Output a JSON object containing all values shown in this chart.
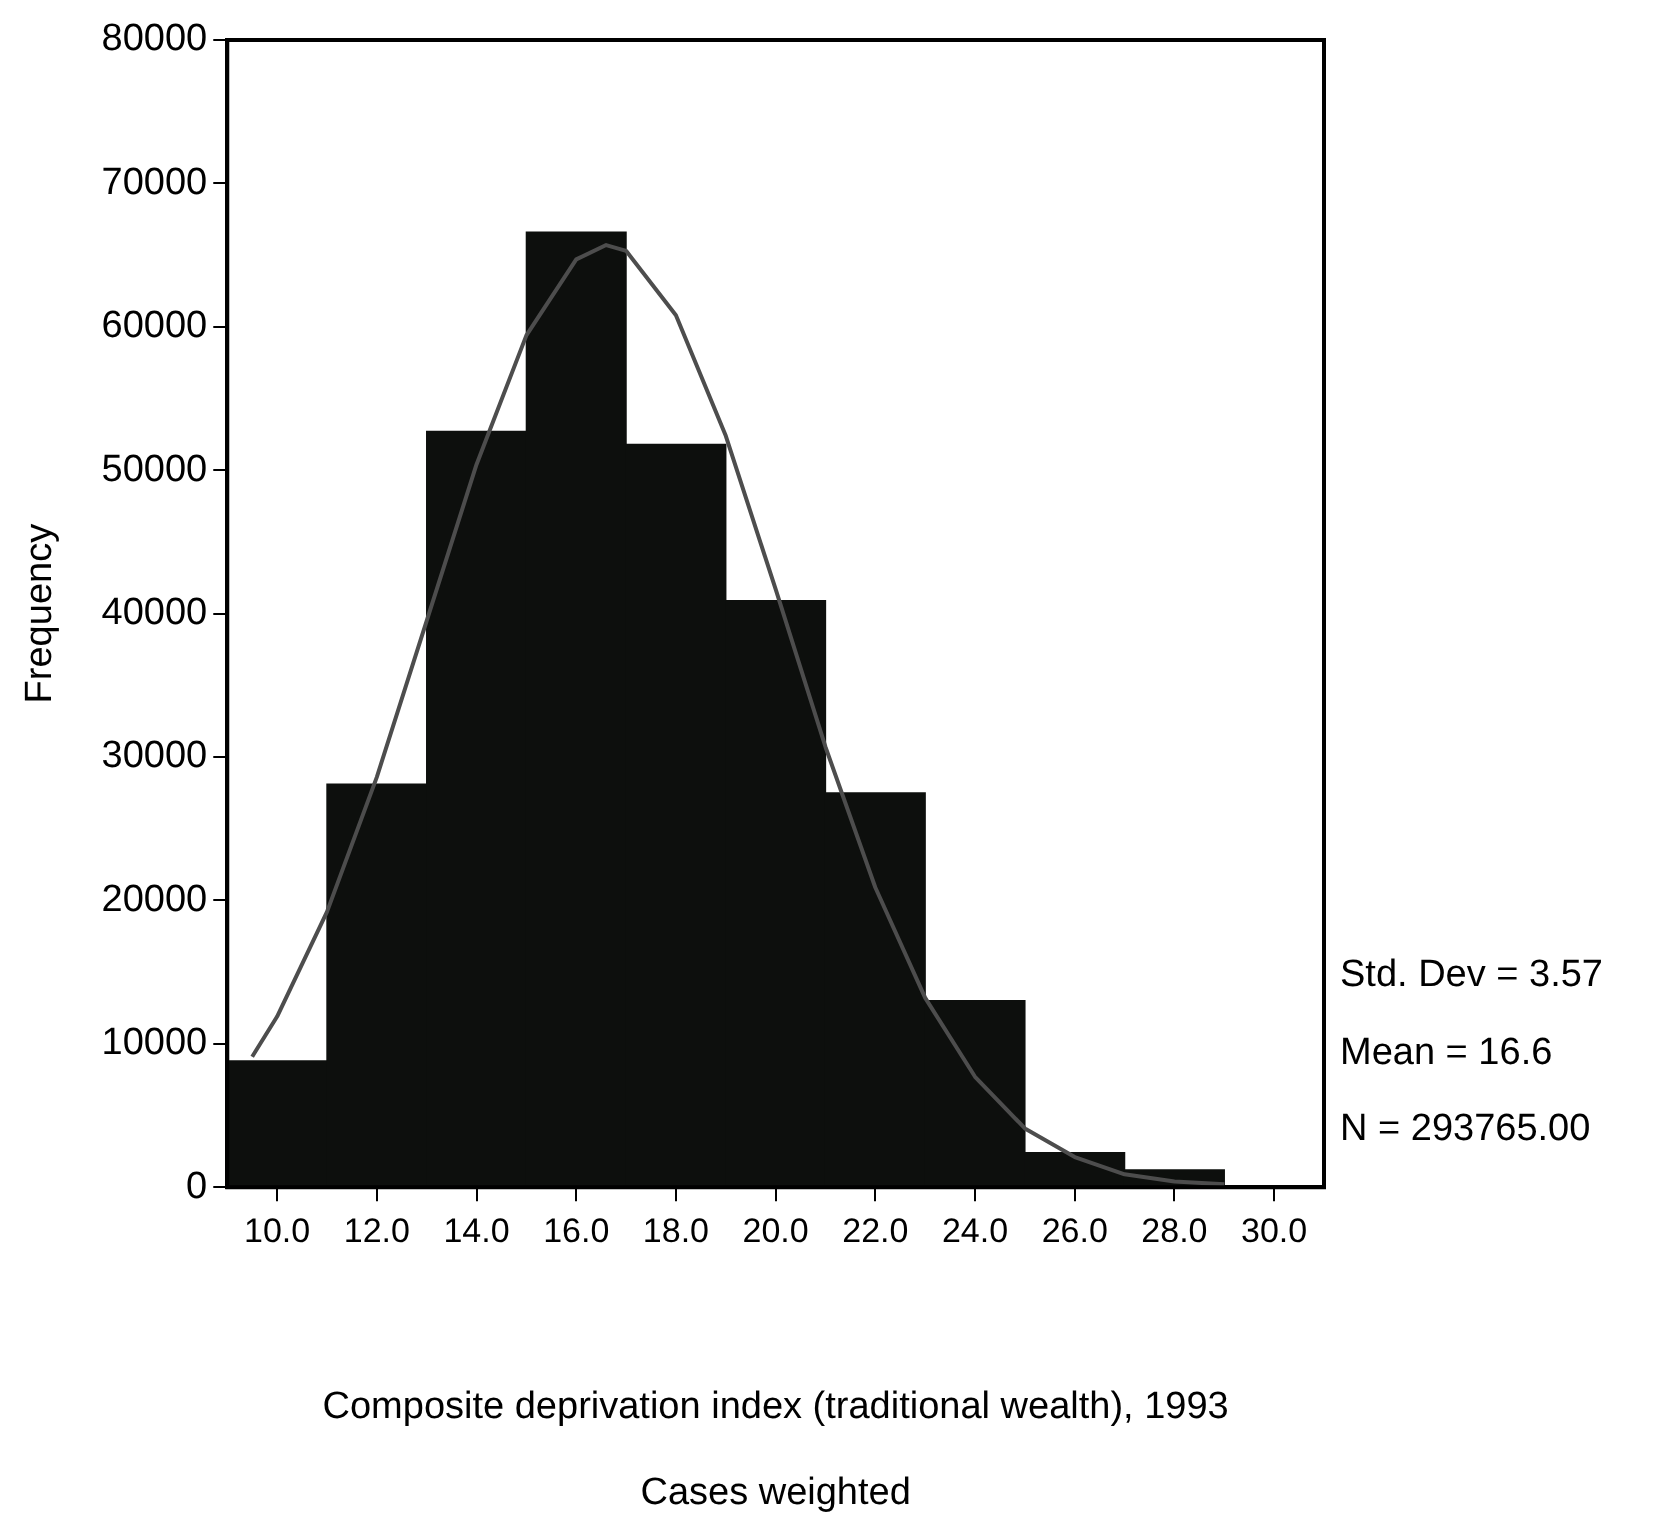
{
  "chart_data": {
    "type": "histogram",
    "xlabel": "Composite deprivation index (traditional wealth), 1993",
    "ylabel": "Frequency",
    "bins": [
      9,
      11,
      13,
      15,
      17,
      19,
      21,
      23,
      25,
      27,
      29
    ],
    "values": [
      8800,
      28100,
      52700,
      66600,
      51800,
      40900,
      27500,
      13000,
      2400,
      1200
    ],
    "color": "#0d0f0d",
    "series": [
      {
        "type": "line",
        "color": "#4d4d4d",
        "x": [
          9.5,
          10,
          11,
          12,
          13,
          14,
          15,
          16,
          16.6,
          17,
          18,
          19,
          20,
          21,
          22,
          23,
          24,
          25,
          26,
          27,
          28,
          29
        ],
        "values": [
          9100,
          11900,
          19200,
          28600,
          39500,
          50400,
          59400,
          64700,
          65700,
          65300,
          60800,
          52400,
          41700,
          30700,
          20900,
          13200,
          7700,
          4100,
          2100,
          900,
          400,
          200
        ]
      }
    ],
    "xlim": [
      9,
      31
    ],
    "xticks": [
      {
        "value": 10,
        "label": "10.0"
      },
      {
        "value": 12,
        "label": "12.0"
      },
      {
        "value": 14,
        "label": "14.0"
      },
      {
        "value": 16,
        "label": "16.0"
      },
      {
        "value": 18,
        "label": "18.0"
      },
      {
        "value": 20,
        "label": "20.0"
      },
      {
        "value": 22,
        "label": "22.0"
      },
      {
        "value": 24,
        "label": "24.0"
      },
      {
        "value": 26,
        "label": "26.0"
      },
      {
        "value": 28,
        "label": "28.0"
      },
      {
        "value": 30,
        "label": "30.0"
      }
    ],
    "ylim": [
      0,
      80000
    ],
    "yticks": [
      0,
      10000,
      20000,
      30000,
      40000,
      50000,
      60000,
      70000,
      80000
    ],
    "grid": false,
    "legend": false,
    "marker": "none",
    "line_style": "solid",
    "annotations": [
      "Std. Dev = 3.57",
      "Mean = 16.6",
      "N = 293765.00",
      "Cases weighted"
    ]
  }
}
